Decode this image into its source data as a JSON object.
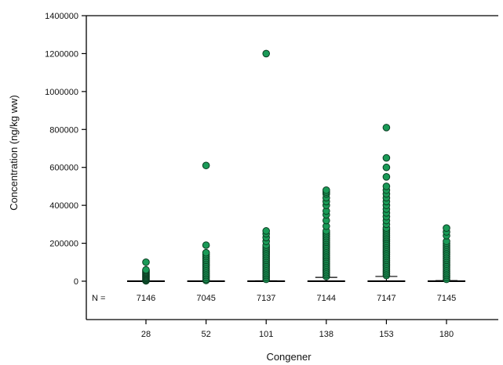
{
  "chart_data": {
    "type": "box",
    "title": "",
    "xlabel": "Congener",
    "ylabel": "Concentration (ng/kg ww)",
    "ylim": [
      -150000,
      1400000
    ],
    "yticks": [
      0,
      200000,
      400000,
      600000,
      800000,
      1000000,
      1200000,
      1400000
    ],
    "ytick_labels": [
      "0",
      "200000",
      "400000",
      "600000",
      "800000",
      "1000000",
      "1200000",
      "1400000"
    ],
    "categories": [
      "28",
      "52",
      "101",
      "138",
      "153",
      "180"
    ],
    "n_prefix": "N =",
    "n_counts": [
      "7146",
      "7045",
      "7137",
      "7144",
      "7147",
      "7145"
    ],
    "grid": false,
    "legend": "none",
    "colors": {
      "point": "#1a9a57",
      "point_edge": "#0b3d22",
      "median": "#000000",
      "axis": "#000000"
    },
    "groups": [
      {
        "category": "28",
        "n": 7146,
        "median": 0,
        "upper_whisker": 0,
        "outliers": [
          2000,
          6000,
          10000,
          15000,
          20000,
          25000,
          30000,
          35000,
          40000,
          45000,
          50000,
          55000,
          60000,
          100000
        ]
      },
      {
        "category": "52",
        "n": 7045,
        "median": 0,
        "upper_whisker": 0,
        "outliers": [
          4000,
          10000,
          20000,
          30000,
          40000,
          50000,
          60000,
          70000,
          80000,
          90000,
          100000,
          110000,
          120000,
          130000,
          140000,
          150000,
          190000,
          610000
        ]
      },
      {
        "category": "101",
        "n": 7137,
        "median": 0,
        "upper_whisker": 2000,
        "outliers": [
          10000,
          20000,
          30000,
          40000,
          50000,
          60000,
          70000,
          80000,
          90000,
          100000,
          110000,
          120000,
          130000,
          140000,
          150000,
          160000,
          170000,
          180000,
          190000,
          210000,
          230000,
          250000,
          265000,
          1200000
        ]
      },
      {
        "category": "138",
        "n": 7144,
        "median": 0,
        "upper_whisker": 20000,
        "outliers": [
          25000,
          35000,
          45000,
          55000,
          65000,
          75000,
          85000,
          95000,
          105000,
          115000,
          125000,
          135000,
          145000,
          155000,
          165000,
          175000,
          185000,
          195000,
          205000,
          215000,
          225000,
          235000,
          245000,
          255000,
          265000,
          290000,
          320000,
          350000,
          370000,
          400000,
          420000,
          440000,
          460000,
          470000,
          480000
        ]
      },
      {
        "category": "153",
        "n": 7147,
        "median": 0,
        "upper_whisker": 25000,
        "outliers": [
          30000,
          40000,
          50000,
          60000,
          70000,
          80000,
          90000,
          100000,
          110000,
          120000,
          130000,
          140000,
          150000,
          160000,
          170000,
          180000,
          190000,
          200000,
          210000,
          220000,
          230000,
          240000,
          250000,
          260000,
          270000,
          280000,
          300000,
          320000,
          340000,
          360000,
          380000,
          400000,
          420000,
          440000,
          460000,
          480000,
          500000,
          550000,
          600000,
          650000,
          810000
        ]
      },
      {
        "category": "180",
        "n": 7145,
        "median": 0,
        "upper_whisker": 3000,
        "outliers": [
          10000,
          20000,
          30000,
          40000,
          50000,
          60000,
          70000,
          80000,
          90000,
          100000,
          110000,
          120000,
          130000,
          140000,
          150000,
          160000,
          170000,
          180000,
          190000,
          200000,
          210000,
          240000,
          260000,
          280000
        ]
      }
    ]
  }
}
